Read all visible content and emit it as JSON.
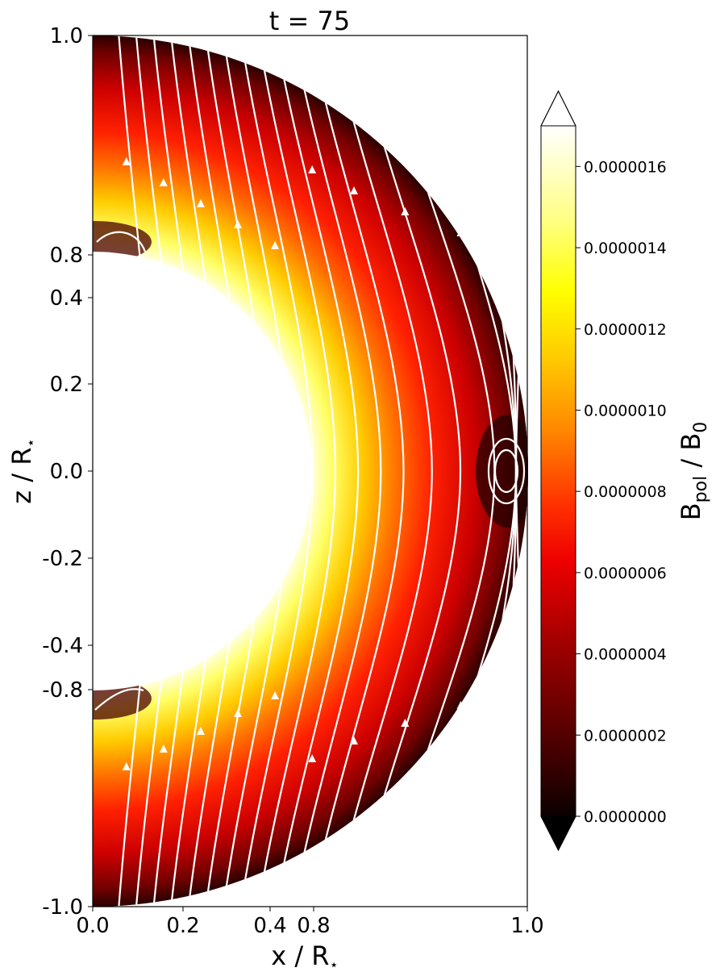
{
  "chart_data": {
    "type": "heatmap",
    "title": "t = 75",
    "xlabel": "x / R",
    "xlabel_sub": "⋆",
    "ylabel": "z / R",
    "ylabel_sub": "⋆",
    "x_ticks": [
      "0.0",
      "0.2",
      "0.4",
      "0.8",
      "1.0"
    ],
    "y_ticks": [
      "1.0",
      "0.8",
      "0.4",
      "0.2",
      "0.0",
      "-0.2",
      "-0.4",
      "-0.8",
      "-1.0"
    ],
    "colorbar": {
      "label_main": "B",
      "label_sub1": "pol",
      "label_mid": " / B",
      "label_sub2": "0",
      "ticks": [
        "0.0000016",
        "0.0000014",
        "0.0000012",
        "0.0000010",
        "0.0000008",
        "0.0000006",
        "0.0000004",
        "0.0000002",
        "0.0000000"
      ],
      "tick_values": [
        1.6e-06,
        1.4e-06,
        1.2e-06,
        1e-06,
        8e-07,
        6e-07,
        4e-07,
        2e-07,
        0.0
      ],
      "range": [
        0.0,
        1.7e-06
      ],
      "colormap": "hot",
      "extend": "both"
    },
    "field": "poloidal magnetic field strength in a meridional half-shell, with white field lines"
  }
}
